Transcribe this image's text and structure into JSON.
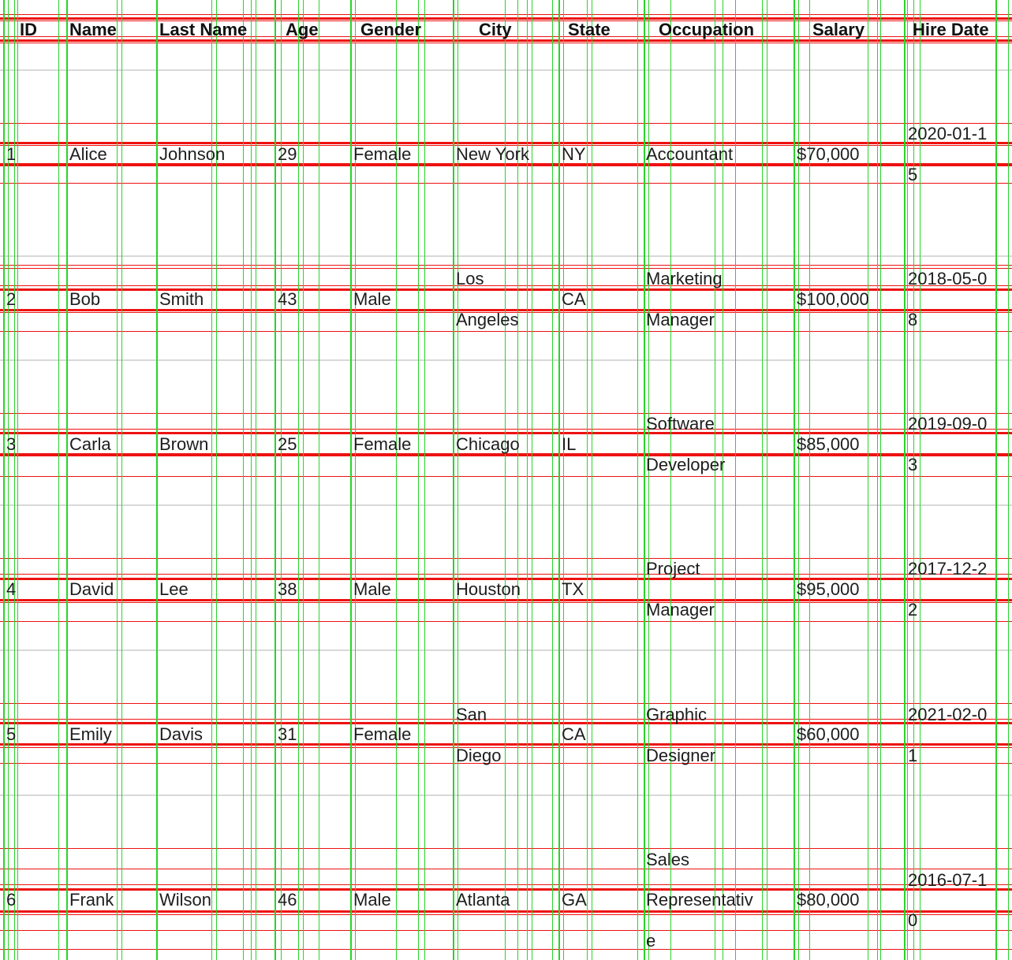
{
  "table": {
    "headers": {
      "id": "ID",
      "name": "Name",
      "last_name": "Last Name",
      "age": "Age",
      "gender": "Gender",
      "city": "City",
      "state": "State",
      "occupation": "Occupation",
      "salary": "Salary",
      "hire_date": "Hire Date"
    },
    "rows": [
      {
        "id": "1",
        "name": "Alice",
        "last_name": "Johnson",
        "age": "29",
        "gender": "Female",
        "city": [
          "New York"
        ],
        "state": "NY",
        "occupation": [
          "Accountant"
        ],
        "salary": "$70,000",
        "hire_date": [
          "2020-01-1",
          "5"
        ]
      },
      {
        "id": "2",
        "name": "Bob",
        "last_name": "Smith",
        "age": "43",
        "gender": "Male",
        "city": [
          "Los",
          "Angeles"
        ],
        "state": "CA",
        "occupation": [
          "Marketing",
          "Manager"
        ],
        "salary": "$100,000",
        "hire_date": [
          "2018-05-0",
          "8"
        ]
      },
      {
        "id": "3",
        "name": "Carla",
        "last_name": "Brown",
        "age": "25",
        "gender": "Female",
        "city": [
          "Chicago"
        ],
        "state": "IL",
        "occupation": [
          "Software",
          "Developer"
        ],
        "salary": "$85,000",
        "hire_date": [
          "2019-09-0",
          "3"
        ]
      },
      {
        "id": "4",
        "name": "David",
        "last_name": "Lee",
        "age": "38",
        "gender": "Male",
        "city": [
          "Houston"
        ],
        "state": "TX",
        "occupation": [
          "Project",
          "Manager"
        ],
        "salary": "$95,000",
        "hire_date": [
          "2017-12-2",
          "2"
        ]
      },
      {
        "id": "5",
        "name": "Emily",
        "last_name": "Davis",
        "age": "31",
        "gender": "Female",
        "city": [
          "San",
          "Diego"
        ],
        "state": "CA",
        "occupation": [
          "Graphic",
          "Designer"
        ],
        "salary": "$60,000",
        "hire_date": [
          "2021-02-0",
          "1"
        ]
      },
      {
        "id": "6",
        "name": "Frank",
        "last_name": "Wilson",
        "age": "46",
        "gender": "Male",
        "city": [
          "Atlanta"
        ],
        "state": "GA",
        "occupation": [
          "Sales",
          "Representativ",
          "e"
        ],
        "salary": "$80,000",
        "hire_date": [
          "2016-07-1",
          "0"
        ]
      }
    ]
  },
  "colors": {
    "guide_horizontal": "#ee1111",
    "guide_vertical": "#2ad32a",
    "row_separator": "#d8d8d8",
    "text": "#1d1d1d"
  }
}
